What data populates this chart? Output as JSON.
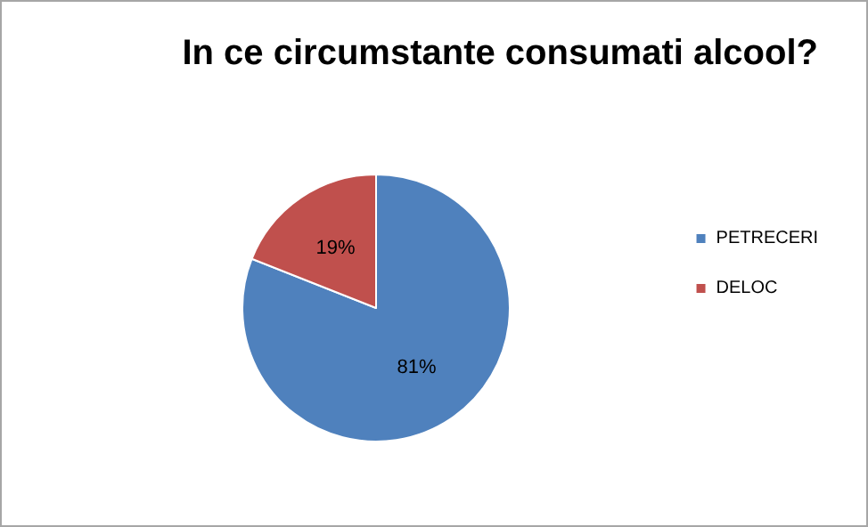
{
  "chart_data": {
    "type": "pie",
    "title": "In ce circumstante consumati alcool?",
    "categories": [
      "PETRECERI",
      "DELOC"
    ],
    "values": [
      81,
      19
    ],
    "colors": [
      "#4f81bd",
      "#c0504d"
    ],
    "value_labels": [
      "81%",
      "19%"
    ],
    "legend": "right"
  }
}
